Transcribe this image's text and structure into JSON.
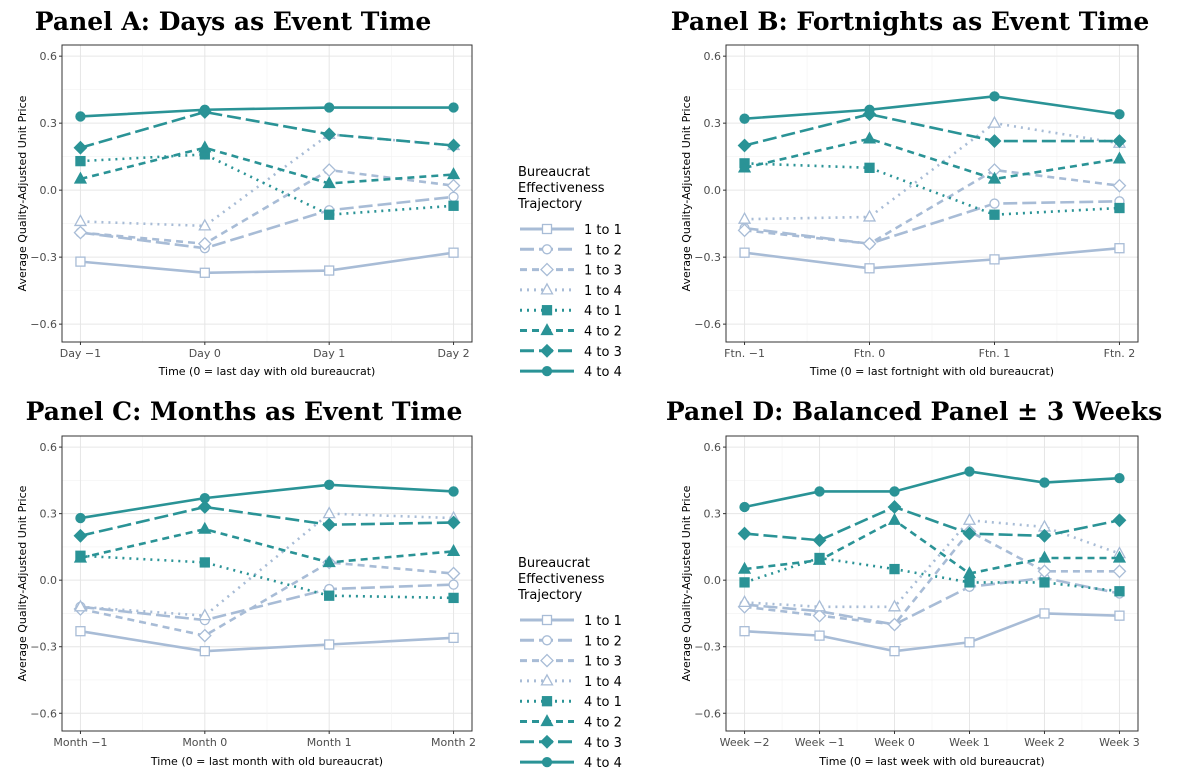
{
  "colors": {
    "light": "#a8bcd6",
    "teal": "#2a9396",
    "grid": "#e6e6e6",
    "axis": "#333333"
  },
  "legend": {
    "title_lines": [
      "Bureaucrat",
      "Effectiveness",
      "Trajectory"
    ]
  },
  "series_styles": [
    {
      "name": "1 to 1",
      "color": "light",
      "dash": "solid",
      "marker": "square-open"
    },
    {
      "name": "1 to 2",
      "color": "light",
      "dash": "longdash",
      "marker": "circle-open"
    },
    {
      "name": "1 to 3",
      "color": "light",
      "dash": "dashed",
      "marker": "diamond-open"
    },
    {
      "name": "1 to 4",
      "color": "light",
      "dash": "dotted",
      "marker": "triangle-open"
    },
    {
      "name": "4 to 1",
      "color": "teal",
      "dash": "dotted",
      "marker": "square"
    },
    {
      "name": "4 to 2",
      "color": "teal",
      "dash": "dashed",
      "marker": "triangle"
    },
    {
      "name": "4 to 3",
      "color": "teal",
      "dash": "longdash",
      "marker": "diamond"
    },
    {
      "name": "4 to 4",
      "color": "teal",
      "dash": "solid",
      "marker": "circle"
    }
  ],
  "chart_data": [
    {
      "type": "line",
      "title": "Panel A: Days as Event Time",
      "xlabel": "Time (0 = last day with old bureaucrat)",
      "ylabel": "Average Quality-Adjusted Unit Price",
      "categories": [
        "Day −1",
        "Day 0",
        "Day 1",
        "Day 2"
      ],
      "ylim": [
        -0.68,
        0.65
      ],
      "yticks": [
        -0.6,
        -0.3,
        0.0,
        0.3,
        0.6
      ],
      "ytick_labels": [
        "−0.6",
        "−0.3",
        "0.0",
        "0.3",
        "0.6"
      ],
      "grid": true,
      "series": [
        {
          "name": "1 to 1",
          "values": [
            -0.32,
            -0.37,
            -0.36,
            -0.28
          ]
        },
        {
          "name": "1 to 2",
          "values": [
            -0.19,
            -0.26,
            -0.09,
            -0.03
          ]
        },
        {
          "name": "1 to 3",
          "values": [
            -0.19,
            -0.24,
            0.09,
            0.02
          ]
        },
        {
          "name": "1 to 4",
          "values": [
            -0.14,
            -0.16,
            0.25,
            0.2
          ]
        },
        {
          "name": "4 to 1",
          "values": [
            0.13,
            0.16,
            -0.11,
            -0.07
          ]
        },
        {
          "name": "4 to 2",
          "values": [
            0.05,
            0.19,
            0.03,
            0.07
          ]
        },
        {
          "name": "4 to 3",
          "values": [
            0.19,
            0.35,
            0.25,
            0.2
          ]
        },
        {
          "name": "4 to 4",
          "values": [
            0.33,
            0.36,
            0.37,
            0.37
          ]
        }
      ]
    },
    {
      "type": "line",
      "title": "Panel B: Fortnights as Event Time",
      "xlabel": "Time (0 = last fortnight with old bureaucrat)",
      "ylabel": "Average Quality-Adjusted Unit Price",
      "categories": [
        "Ftn. −1",
        "Ftn. 0",
        "Ftn. 1",
        "Ftn. 2"
      ],
      "ylim": [
        -0.68,
        0.65
      ],
      "yticks": [
        -0.6,
        -0.3,
        0.0,
        0.3,
        0.6
      ],
      "ytick_labels": [
        "−0.6",
        "−0.3",
        "0.0",
        "0.3",
        "0.6"
      ],
      "grid": true,
      "series": [
        {
          "name": "1 to 1",
          "values": [
            -0.28,
            -0.35,
            -0.31,
            -0.26
          ]
        },
        {
          "name": "1 to 2",
          "values": [
            -0.17,
            -0.24,
            -0.06,
            -0.05
          ]
        },
        {
          "name": "1 to 3",
          "values": [
            -0.18,
            -0.24,
            0.09,
            0.02
          ]
        },
        {
          "name": "1 to 4",
          "values": [
            -0.13,
            -0.12,
            0.3,
            0.21
          ]
        },
        {
          "name": "4 to 1",
          "values": [
            0.12,
            0.1,
            -0.11,
            -0.08
          ]
        },
        {
          "name": "4 to 2",
          "values": [
            0.1,
            0.23,
            0.05,
            0.14
          ]
        },
        {
          "name": "4 to 3",
          "values": [
            0.2,
            0.34,
            0.22,
            0.22
          ]
        },
        {
          "name": "4 to 4",
          "values": [
            0.32,
            0.36,
            0.42,
            0.34
          ]
        }
      ]
    },
    {
      "type": "line",
      "title": "Panel C: Months as Event Time",
      "xlabel": "Time (0 = last month with old bureaucrat)",
      "ylabel": "Average Quality-Adjusted Unit Price",
      "categories": [
        "Month −1",
        "Month 0",
        "Month 1",
        "Month 2"
      ],
      "ylim": [
        -0.68,
        0.65
      ],
      "yticks": [
        -0.6,
        -0.3,
        0.0,
        0.3,
        0.6
      ],
      "ytick_labels": [
        "−0.6",
        "−0.3",
        "0.0",
        "0.3",
        "0.6"
      ],
      "grid": true,
      "series": [
        {
          "name": "1 to 1",
          "values": [
            -0.23,
            -0.32,
            -0.29,
            -0.26
          ]
        },
        {
          "name": "1 to 2",
          "values": [
            -0.12,
            -0.18,
            -0.04,
            -0.02
          ]
        },
        {
          "name": "1 to 3",
          "values": [
            -0.13,
            -0.25,
            0.08,
            0.03
          ]
        },
        {
          "name": "1 to 4",
          "values": [
            -0.12,
            -0.16,
            0.3,
            0.28
          ]
        },
        {
          "name": "4 to 1",
          "values": [
            0.11,
            0.08,
            -0.07,
            -0.08
          ]
        },
        {
          "name": "4 to 2",
          "values": [
            0.1,
            0.23,
            0.08,
            0.13
          ]
        },
        {
          "name": "4 to 3",
          "values": [
            0.2,
            0.33,
            0.25,
            0.26
          ]
        },
        {
          "name": "4 to 4",
          "values": [
            0.28,
            0.37,
            0.43,
            0.4
          ]
        }
      ]
    },
    {
      "type": "line",
      "title": "Panel D: Balanced Panel ± 3 Weeks",
      "xlabel": "Time (0 = last week with old bureaucrat)",
      "ylabel": "Average Quality-Adjusted Unit Price",
      "categories": [
        "Week −2",
        "Week −1",
        "Week 0",
        "Week 1",
        "Week 2",
        "Week 3"
      ],
      "ylim": [
        -0.68,
        0.65
      ],
      "yticks": [
        -0.6,
        -0.3,
        0.0,
        0.3,
        0.6
      ],
      "ytick_labels": [
        "−0.6",
        "−0.3",
        "0.0",
        "0.3",
        "0.6"
      ],
      "grid": true,
      "series": [
        {
          "name": "1 to 1",
          "values": [
            -0.23,
            -0.25,
            -0.32,
            -0.28,
            -0.15,
            -0.16
          ]
        },
        {
          "name": "1 to 2",
          "values": [
            -0.11,
            -0.14,
            -0.2,
            -0.03,
            0.01,
            -0.06
          ]
        },
        {
          "name": "1 to 3",
          "values": [
            -0.12,
            -0.16,
            -0.2,
            0.22,
            0.04,
            0.04
          ]
        },
        {
          "name": "1 to 4",
          "values": [
            -0.1,
            -0.12,
            -0.12,
            0.27,
            0.24,
            0.12
          ]
        },
        {
          "name": "4 to 1",
          "values": [
            -0.01,
            0.1,
            0.05,
            -0.01,
            -0.01,
            -0.05
          ]
        },
        {
          "name": "4 to 2",
          "values": [
            0.05,
            0.09,
            0.27,
            0.03,
            0.1,
            0.1
          ]
        },
        {
          "name": "4 to 3",
          "values": [
            0.21,
            0.18,
            0.33,
            0.21,
            0.2,
            0.27
          ]
        },
        {
          "name": "4 to 4",
          "values": [
            0.33,
            0.4,
            0.4,
            0.49,
            0.44,
            0.46
          ]
        }
      ]
    }
  ]
}
